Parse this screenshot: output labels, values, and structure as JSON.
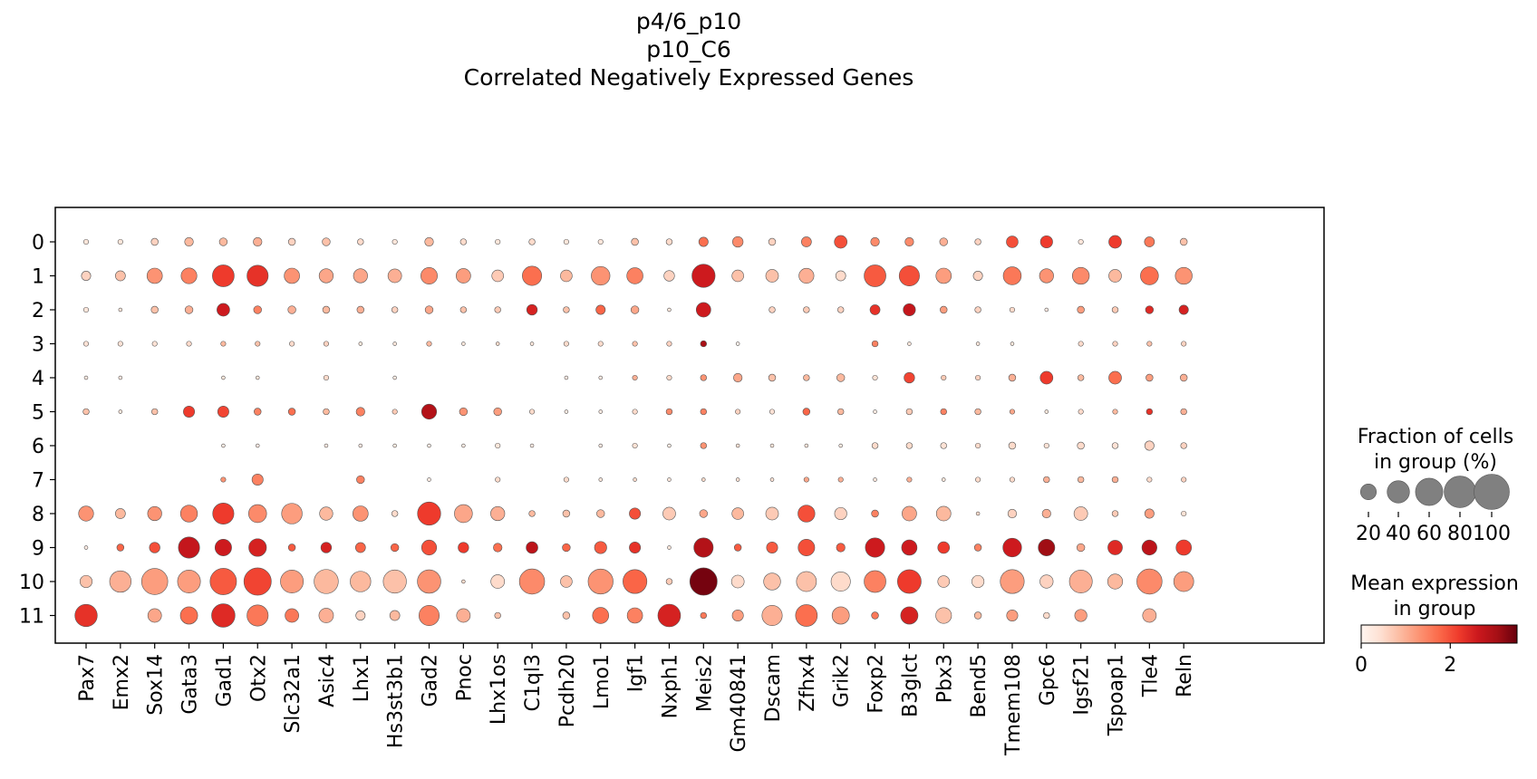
{
  "title_lines": [
    "p4/6_p10",
    "p10_C6",
    "Correlated Negatively Expressed Genes"
  ],
  "chart_data": {
    "type": "dotplot",
    "genes": [
      "Pax7",
      "Emx2",
      "Sox14",
      "Gata3",
      "Gad1",
      "Otx2",
      "Slc32a1",
      "Asic4",
      "Lhx1",
      "Hs3st3b1",
      "Gad2",
      "Pnoc",
      "Lhx1os",
      "C1ql3",
      "Pcdh20",
      "Lmo1",
      "Igf1",
      "Nxph1",
      "Meis2",
      "Gm40841",
      "Dscam",
      "Zfhx4",
      "Grik2",
      "Foxp2",
      "B3glct",
      "Pbx3",
      "Bend5",
      "Tmem108",
      "Gpc6",
      "Igsf21",
      "Tspoap1",
      "Tle4",
      "Reln"
    ],
    "groups": [
      "0",
      "1",
      "2",
      "3",
      "4",
      "5",
      "6",
      "7",
      "8",
      "9",
      "10",
      "11"
    ],
    "fraction_pct": [
      [
        2,
        2,
        4,
        6,
        5,
        6,
        4,
        5,
        3,
        2,
        6,
        3,
        2,
        3,
        2,
        2,
        4,
        3,
        7,
        9,
        4,
        8,
        13,
        6,
        6,
        5,
        3,
        11,
        12,
        2,
        13,
        8,
        4
      ],
      [
        7,
        8,
        19,
        20,
        38,
        36,
        19,
        16,
        16,
        15,
        22,
        17,
        11,
        30,
        11,
        28,
        21,
        9,
        43,
        11,
        13,
        18,
        8,
        38,
        33,
        19,
        7,
        26,
        16,
        23,
        13,
        26,
        23
      ],
      [
        2,
        1,
        4,
        5,
        13,
        5,
        5,
        4,
        4,
        3,
        5,
        3,
        3,
        9,
        3,
        7,
        5,
        1,
        17,
        0,
        3,
        3,
        3,
        8,
        12,
        4,
        3,
        2,
        1,
        4,
        3,
        5,
        7
      ],
      [
        2,
        2,
        2,
        2,
        2,
        2,
        2,
        2,
        1,
        1,
        2,
        1,
        1,
        1,
        2,
        2,
        2,
        2,
        3,
        1,
        0,
        0,
        0,
        3,
        1,
        0,
        1,
        1,
        0,
        2,
        2,
        2,
        2
      ],
      [
        1,
        1,
        0,
        0,
        1,
        1,
        0,
        2,
        0,
        1,
        0,
        0,
        0,
        0,
        1,
        1,
        2,
        2,
        3,
        6,
        4,
        3,
        5,
        2,
        9,
        2,
        2,
        4,
        13,
        3,
        13,
        4,
        4
      ],
      [
        3,
        1,
        3,
        10,
        10,
        4,
        4,
        3,
        6,
        2,
        18,
        5,
        5,
        2,
        1,
        1,
        2,
        3,
        3,
        2,
        2,
        4,
        3,
        1,
        3,
        3,
        3,
        2,
        1,
        2,
        2,
        3,
        3
      ],
      [
        0,
        0,
        0,
        0,
        1,
        1,
        0,
        1,
        1,
        1,
        1,
        1,
        2,
        1,
        0,
        1,
        2,
        1,
        3,
        1,
        1,
        1,
        1,
        3,
        3,
        3,
        2,
        4,
        2,
        4,
        3,
        7,
        3
      ],
      [
        0,
        0,
        0,
        0,
        2,
        10,
        0,
        0,
        5,
        0,
        1,
        0,
        2,
        0,
        2,
        1,
        1,
        1,
        1,
        1,
        1,
        2,
        2,
        1,
        2,
        1,
        2,
        2,
        3,
        3,
        3,
        2,
        2
      ],
      [
        18,
        8,
        16,
        23,
        36,
        26,
        34,
        14,
        19,
        3,
        43,
        26,
        16,
        3,
        4,
        5,
        10,
        13,
        5,
        11,
        13,
        23,
        12,
        4,
        17,
        17,
        1,
        6,
        6,
        15,
        3,
        7,
        2
      ],
      [
        1,
        4,
        9,
        36,
        22,
        25,
        4,
        9,
        8,
        5,
        18,
        9,
        6,
        11,
        5,
        12,
        10,
        1,
        30,
        4,
        10,
        22,
        6,
        30,
        19,
        11,
        4,
        28,
        22,
        5,
        17,
        18,
        19
      ],
      [
        12,
        37,
        55,
        42,
        56,
        60,
        42,
        47,
        34,
        43,
        44,
        1,
        15,
        51,
        11,
        50,
        46,
        3,
        60,
        13,
        23,
        32,
        30,
        38,
        45,
        11,
        12,
        46,
        14,
        42,
        18,
        51,
        32
      ],
      [
        40,
        0,
        15,
        24,
        44,
        36,
        15,
        17,
        7,
        8,
        33,
        15,
        3,
        0,
        4,
        21,
        19,
        41,
        3,
        10,
        33,
        38,
        24,
        4,
        24,
        20,
        4,
        10,
        3,
        12,
        0,
        15,
        0
      ]
    ],
    "mean_expression": [
      [
        0.3,
        0.3,
        0.6,
        0.9,
        0.9,
        1.0,
        0.6,
        0.8,
        0.5,
        0.3,
        0.9,
        0.5,
        0.3,
        0.5,
        0.3,
        0.3,
        0.8,
        0.5,
        1.7,
        1.4,
        0.6,
        1.5,
        2.0,
        1.4,
        1.4,
        1.0,
        0.6,
        2.0,
        2.2,
        0.3,
        2.2,
        1.6,
        0.8
      ],
      [
        0.6,
        0.8,
        1.3,
        1.5,
        2.2,
        2.3,
        1.3,
        1.1,
        1.1,
        1.0,
        1.4,
        1.2,
        0.7,
        1.7,
        0.9,
        1.3,
        1.5,
        0.6,
        2.6,
        0.8,
        0.8,
        1.0,
        0.5,
        1.9,
        2.0,
        1.2,
        0.6,
        1.6,
        1.3,
        1.4,
        0.9,
        1.7,
        1.3
      ],
      [
        0.3,
        0.3,
        0.8,
        1.0,
        2.6,
        1.5,
        1.0,
        0.9,
        1.0,
        0.6,
        1.1,
        0.8,
        0.7,
        2.5,
        0.8,
        1.8,
        1.1,
        0.3,
        2.6,
        0,
        0.6,
        0.7,
        0.6,
        2.3,
        2.7,
        1.2,
        0.6,
        0.5,
        0.2,
        1.2,
        0.7,
        2.4,
        2.5
      ],
      [
        0.4,
        0.4,
        0.4,
        0.5,
        0.9,
        0.8,
        0.5,
        0.6,
        0.3,
        0.3,
        0.9,
        0.3,
        0.5,
        0.3,
        0.5,
        0.5,
        0.8,
        0.6,
        3.0,
        0.1,
        0,
        0,
        0,
        1.5,
        0.3,
        0,
        0.3,
        0.3,
        0,
        0.5,
        0.6,
        0.8,
        0.6
      ],
      [
        0.2,
        0.2,
        0,
        0,
        0.3,
        0.3,
        0,
        0.5,
        0,
        0.2,
        0,
        0,
        0,
        0,
        0.2,
        0.2,
        1.0,
        0.5,
        1.3,
        1.1,
        0.8,
        0.9,
        0.9,
        0.4,
        2.1,
        0.7,
        0.6,
        1.0,
        2.2,
        0.9,
        1.7,
        1.2,
        1.0
      ],
      [
        0.8,
        0.3,
        0.8,
        2.2,
        2.1,
        1.5,
        1.7,
        0.9,
        1.5,
        0.7,
        2.9,
        1.3,
        1.2,
        0.5,
        0.2,
        0.2,
        0.5,
        1.4,
        1.5,
        0.6,
        0.4,
        1.8,
        0.9,
        0.2,
        0.7,
        1.5,
        0.9,
        1.1,
        0.3,
        0.5,
        0.9,
        2.3,
        1.0
      ],
      [
        0,
        0,
        0,
        0,
        0.2,
        0.2,
        0,
        0.2,
        0.2,
        0.2,
        0.2,
        0.2,
        0.3,
        0.2,
        0,
        0.2,
        0.4,
        0.2,
        1.3,
        0.4,
        0.3,
        0.3,
        0.2,
        0.5,
        0.5,
        0.4,
        0.5,
        0.5,
        0.4,
        0.5,
        0.4,
        0.6,
        0.6
      ],
      [
        0,
        0,
        0,
        0,
        1.3,
        1.5,
        0,
        0,
        1.5,
        0,
        0.2,
        0,
        0.5,
        0,
        0.5,
        0.3,
        0.5,
        0.3,
        0.5,
        0.4,
        0.4,
        1.1,
        1.0,
        0.3,
        1.0,
        0.3,
        0.5,
        0.5,
        1.0,
        0.9,
        1.0,
        0.5,
        0.6
      ],
      [
        1.3,
        0.9,
        1.3,
        1.5,
        2.2,
        1.4,
        1.2,
        0.9,
        1.3,
        0.5,
        2.2,
        1.1,
        1.0,
        0.9,
        0.8,
        0.9,
        2.0,
        0.7,
        1.1,
        0.9,
        0.7,
        2.0,
        0.6,
        1.5,
        1.1,
        0.9,
        0.5,
        0.6,
        1.0,
        0.7,
        0.7,
        1.2,
        0.4
      ],
      [
        0.2,
        1.8,
        2.0,
        2.7,
        2.6,
        2.5,
        1.9,
        2.5,
        1.8,
        1.8,
        2.0,
        2.2,
        1.7,
        2.8,
        1.8,
        1.9,
        2.3,
        0.3,
        2.9,
        1.9,
        1.9,
        2.0,
        1.9,
        2.6,
        2.6,
        2.2,
        1.5,
        2.6,
        3.1,
        1.1,
        2.4,
        2.8,
        2.2
      ],
      [
        0.8,
        1.0,
        1.2,
        1.2,
        1.9,
        2.1,
        1.2,
        0.9,
        0.9,
        0.8,
        1.3,
        0.5,
        0.5,
        1.4,
        0.8,
        1.3,
        1.8,
        0.7,
        3.4,
        0.5,
        0.8,
        0.8,
        0.5,
        1.5,
        2.2,
        0.7,
        0.5,
        1.2,
        0.6,
        1.0,
        0.9,
        1.4,
        1.2
      ],
      [
        2.3,
        0,
        1.1,
        1.7,
        2.4,
        1.6,
        1.6,
        1.0,
        0.6,
        0.9,
        1.5,
        1.0,
        0.8,
        0,
        0.8,
        1.7,
        1.5,
        2.5,
        1.6,
        1.2,
        1.0,
        1.7,
        1.2,
        1.6,
        2.5,
        0.8,
        0.9,
        1.2,
        0.5,
        1.2,
        0,
        1.0,
        0
      ]
    ],
    "size_legend": {
      "title_lines": [
        "Fraction of cells",
        "in group (%)"
      ],
      "values": [
        20,
        40,
        60,
        80,
        100
      ],
      "labels": [
        "20",
        "40",
        "60",
        "80",
        "100"
      ]
    },
    "color_legend": {
      "title_lines": [
        "Mean expression",
        "in group"
      ],
      "colormap": "Reds",
      "range": [
        0,
        3.5
      ],
      "ticks": [
        0,
        2
      ],
      "tick_labels": [
        "0",
        "2"
      ]
    },
    "colors": {
      "dot_edge": "#555555",
      "size_legend_dot": "#808080"
    }
  }
}
